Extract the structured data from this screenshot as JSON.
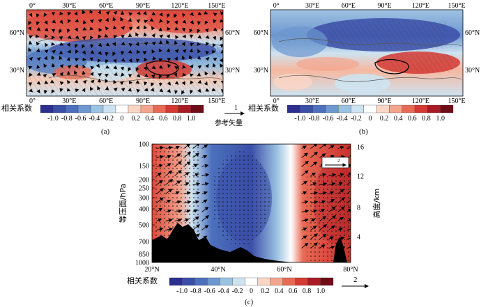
{
  "panels": [
    {
      "id": "a",
      "label": "(a)",
      "lon_ticks": [
        "0°",
        "30°E",
        "60°E",
        "90°E",
        "120°E",
        "150°E"
      ],
      "lat_ticks": [
        "60°N",
        "30°N"
      ],
      "cbar_title": "相关系数",
      "cbar_ticks": [
        "-1.0",
        "-0.8",
        "-0.6",
        "-0.4",
        "-0.2",
        "0",
        "0.2",
        "0.4",
        "0.6",
        "0.8",
        "1.0"
      ],
      "ref_vector_value": "1",
      "ref_vector_label": "参考矢量"
    },
    {
      "id": "b",
      "label": "(b)",
      "lon_ticks": [
        "0°",
        "30°E",
        "60°E",
        "90°E",
        "120°E",
        "150°E"
      ],
      "lat_ticks": [
        "60°N",
        "30°N"
      ],
      "cbar_title": "相关系数",
      "cbar_ticks": [
        "-1.0",
        "-0.8",
        "-0.6",
        "-0.4",
        "-0.2",
        "0",
        "0.2",
        "0.4",
        "0.6",
        "0.8",
        "1.0"
      ]
    },
    {
      "id": "c",
      "label": "(c)",
      "x_ticks": [
        "20°N",
        "40°N",
        "60°N",
        "80°N"
      ],
      "y_left_label": "等压面/hPa",
      "y_left_ticks": [
        "100",
        "150",
        "200",
        "250",
        "300",
        "400",
        "500",
        "700",
        "850",
        "1000"
      ],
      "y_right_label": "高度/km",
      "y_right_ticks": [
        "16",
        "12",
        "8",
        "4"
      ],
      "cbar_title": "相关系数",
      "cbar_ticks": [
        "-1.0",
        "-0.8",
        "-0.6",
        "-0.4",
        "-0.2",
        "0",
        "0.2",
        "0.4",
        "0.6",
        "0.8",
        "1.0"
      ],
      "ref_vector_value": "2",
      "inset_ref_value": "2"
    }
  ],
  "colors": [
    "#2c2f8e",
    "#3b4fa8",
    "#4c70bd",
    "#6c97cf",
    "#9cc2e2",
    "#cde3f1",
    "#ffffff",
    "#fbd6c5",
    "#f4a58d",
    "#e86a55",
    "#d43a33",
    "#a81b25",
    "#6e0d17"
  ]
}
